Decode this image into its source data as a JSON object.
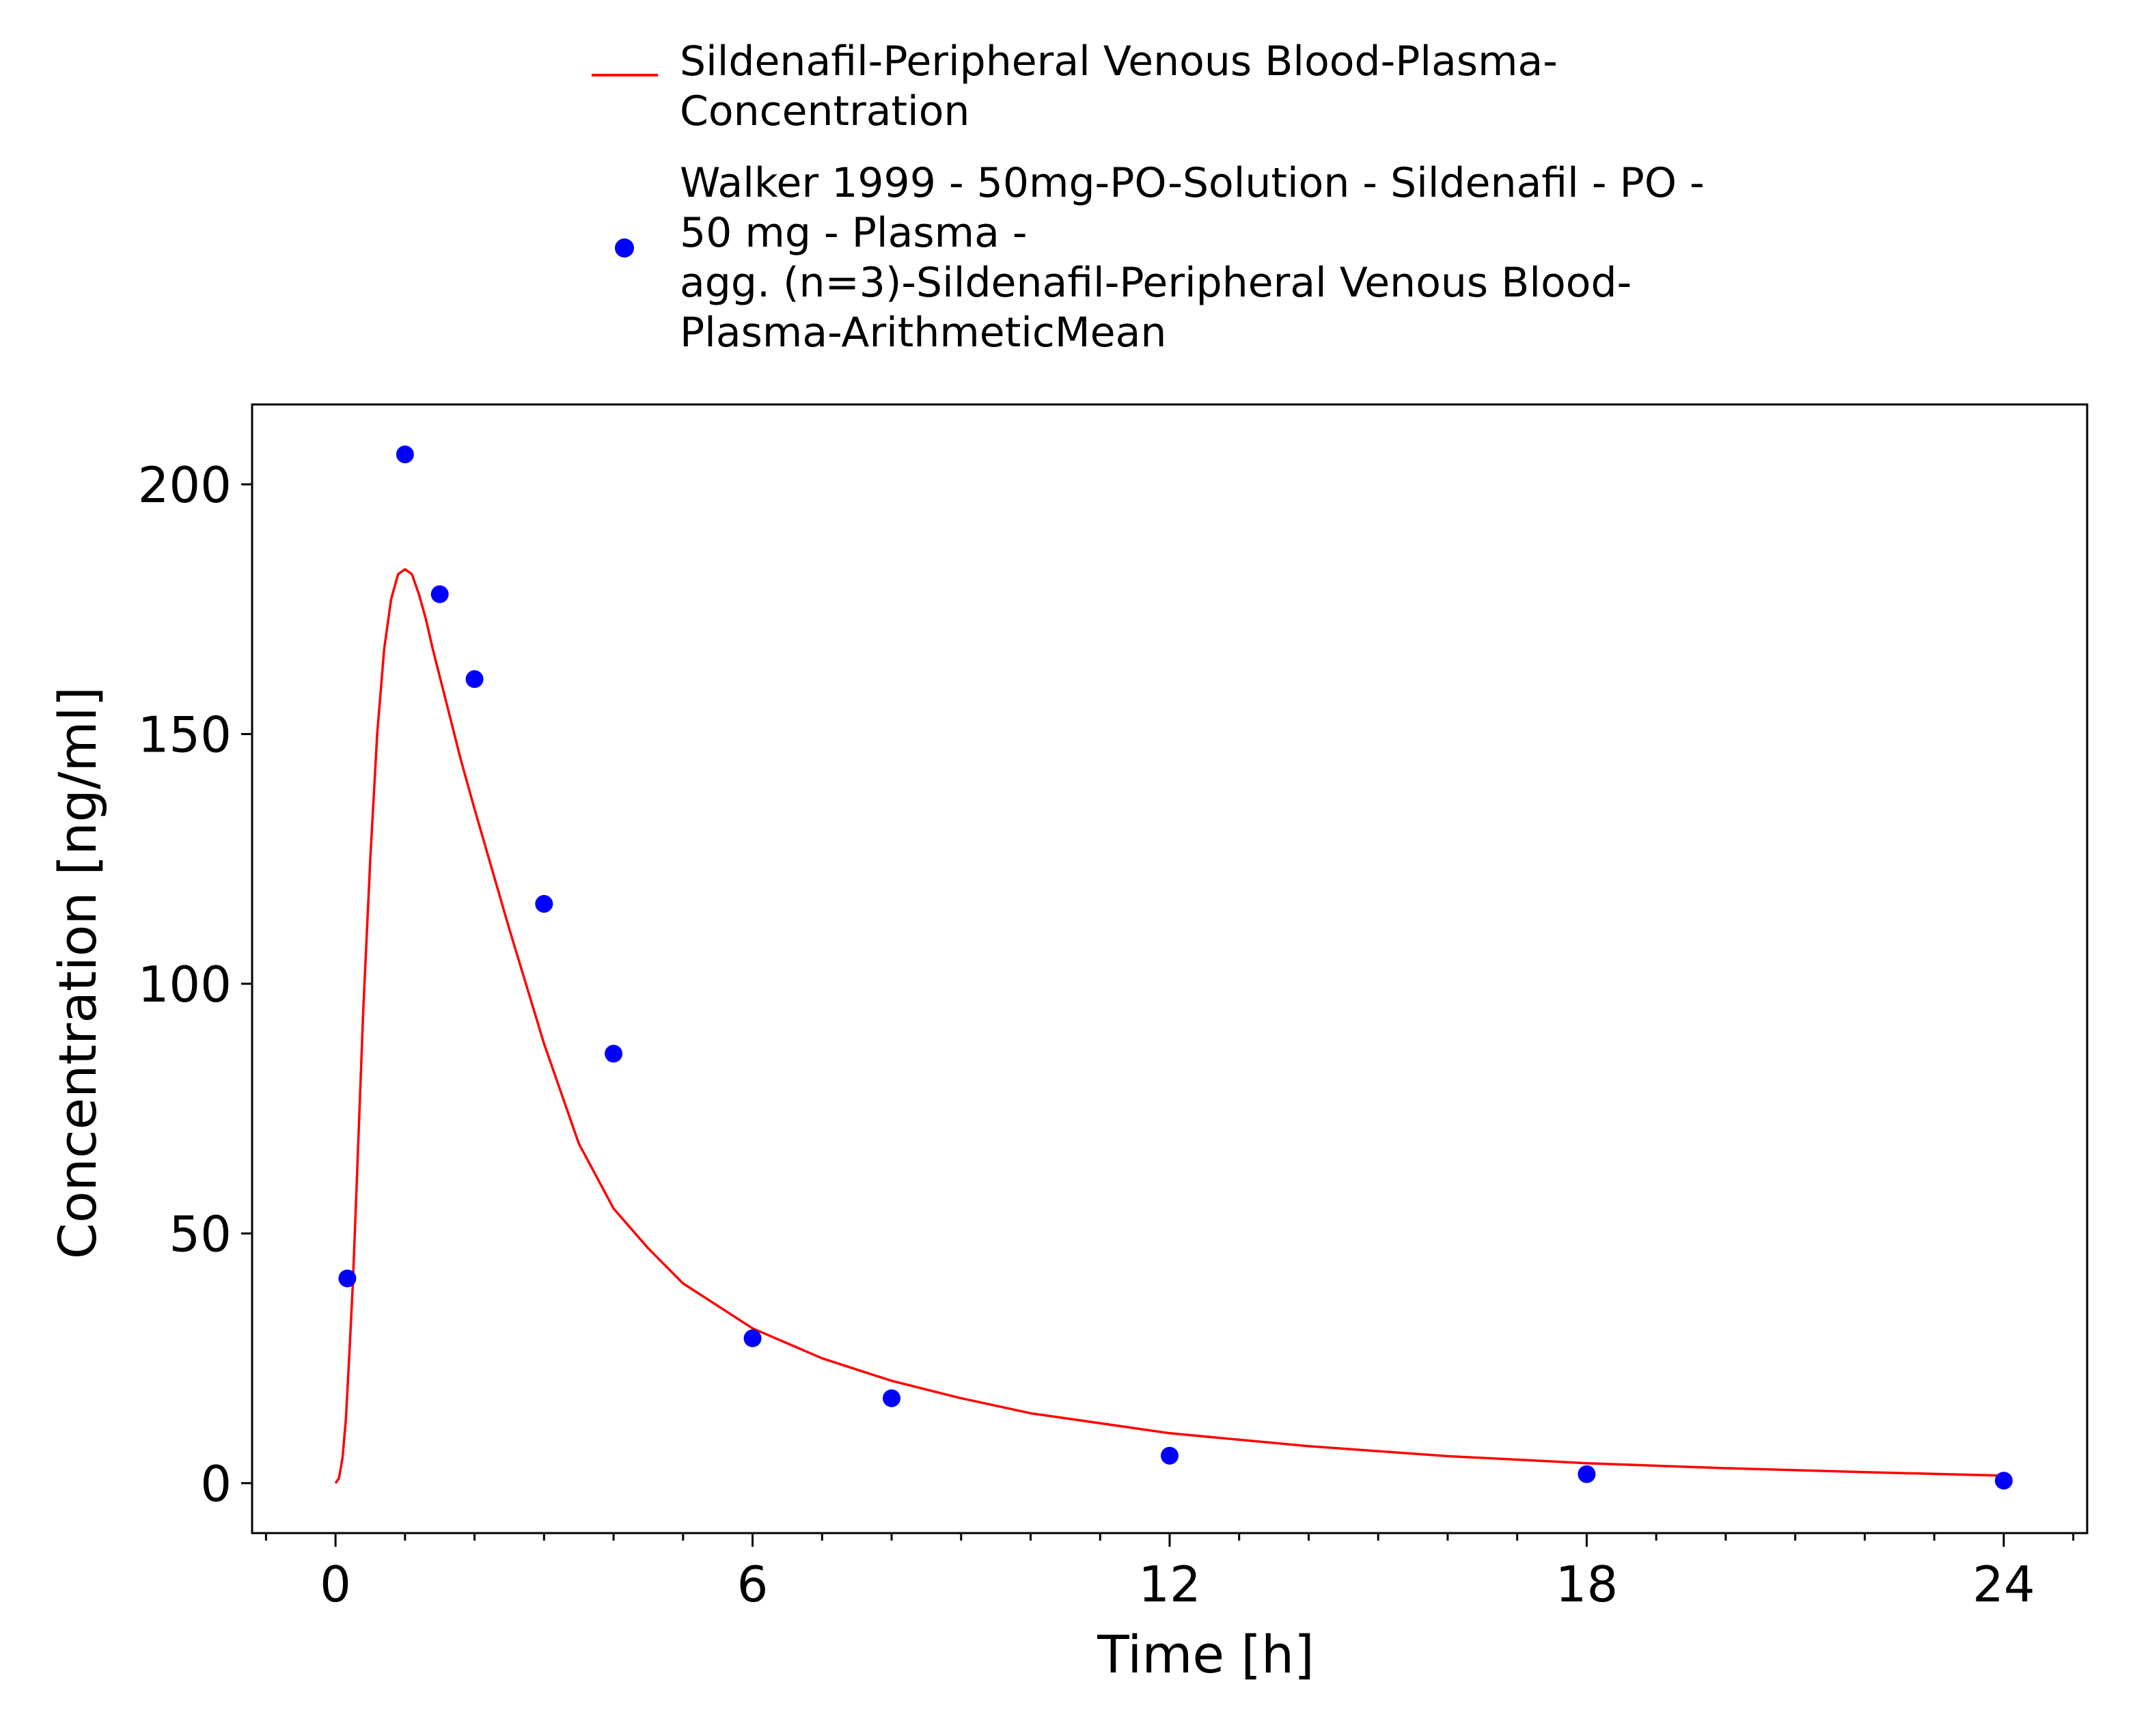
{
  "chart_data": {
    "type": "line",
    "title": "",
    "xlabel": "Time [h]",
    "ylabel": "Concentration [ng/ml]",
    "xlim": [
      -1.2,
      25.2
    ],
    "ylim": [
      -10,
      216
    ],
    "xticks": [
      0,
      6,
      12,
      18,
      24
    ],
    "xtick_labels": [
      "0",
      "6",
      "12",
      "18",
      "24"
    ],
    "xminor_step": 1,
    "yticks": [
      0,
      50,
      100,
      150,
      200
    ],
    "ytick_labels": [
      "0",
      "50",
      "100",
      "150",
      "200"
    ],
    "grid": false,
    "legend_placement": "top",
    "series": [
      {
        "name": "Sildenafil-Peripheral Venous Blood-Plasma-Concentration",
        "name_lines": [
          "Sildenafil-Peripheral Venous Blood-Plasma-",
          "Concentration"
        ],
        "kind": "line",
        "color": "#ff0000",
        "x": [
          0,
          0.05,
          0.1,
          0.15,
          0.2,
          0.25,
          0.3,
          0.4,
          0.5,
          0.6,
          0.7,
          0.8,
          0.9,
          1.0,
          1.1,
          1.2,
          1.3,
          1.4,
          1.6,
          1.8,
          2.0,
          2.5,
          3.0,
          3.5,
          4.0,
          4.5,
          5.0,
          6.0,
          7.0,
          8.0,
          9.0,
          10.0,
          12.0,
          14.0,
          16.0,
          18.0,
          20.0,
          22.0,
          24.0
        ],
        "y": [
          0,
          1,
          5,
          13,
          26,
          40,
          58,
          95,
          125,
          150,
          167,
          177,
          182,
          183,
          182,
          178,
          173,
          167,
          156,
          145,
          135,
          111,
          88,
          68,
          55,
          47,
          40,
          31,
          25,
          20.5,
          17,
          14,
          10,
          7.4,
          5.4,
          4,
          3,
          2.2,
          1.5
        ]
      },
      {
        "name": "Walker 1999 - 50mg-PO-Solution - Sildenafil - PO - 50 mg - Plasma - agg. (n=3)-Sildenafil-Peripheral Venous Blood-Plasma-ArithmeticMean",
        "name_lines": [
          "Walker 1999 - 50mg-PO-Solution - Sildenafil - PO -",
          "50 mg - Plasma -",
          "agg. (n=3)-Sildenafil-Peripheral Venous Blood-",
          "Plasma-ArithmeticMean"
        ],
        "kind": "scatter",
        "color": "#0000ff",
        "x": [
          0.17,
          1.0,
          1.5,
          2.0,
          3.0,
          4.0,
          6.0,
          8.0,
          12.0,
          18.0,
          24.0
        ],
        "y": [
          41,
          206,
          178,
          161,
          116,
          86,
          29,
          17,
          5.5,
          1.8,
          0.5
        ]
      }
    ]
  }
}
